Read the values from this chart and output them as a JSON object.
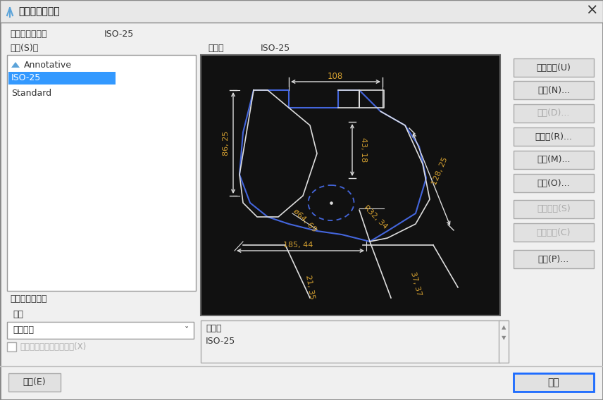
{
  "title": "标注样式管理器",
  "title_icon_color": "#5ba3d9",
  "bg_color": "#f0f0f0",
  "current_label": "当前标注样式：",
  "current_value": "ISO-25",
  "styles_label": "样式(S)：",
  "preview_label": "预览：",
  "preview_value": "ISO-25",
  "style_list": [
    "Annotative",
    "ISO-25",
    "Standard"
  ],
  "selected_bg": "#3399ff",
  "selected_fg": "#ffffff",
  "list_box_bg": "#ffffff",
  "preview_bg": "#111111",
  "buttons_right": [
    {
      "label": "置为当前(U)",
      "enabled": true
    },
    {
      "label": "新建(N)...",
      "enabled": true
    },
    {
      "label": "删除(D)...",
      "enabled": false
    },
    {
      "label": "重命名(R)...",
      "enabled": true
    },
    {
      "label": "修改(M)...",
      "enabled": true
    },
    {
      "label": "替代(O)...",
      "enabled": true
    },
    {
      "label": "保存替代(S)",
      "enabled": false
    },
    {
      "label": "清除替代(C)",
      "enabled": false
    },
    {
      "label": "比较(P)...",
      "enabled": true
    }
  ],
  "display_options_label": "样式显示选项：",
  "list_label": "列出",
  "dropdown_value": "所有样式",
  "checkbox_label": "不列出外部参照中的样式(X)",
  "description_label": "说明：",
  "description_value": "ISO-25",
  "help_button": "帮助(E)",
  "close_button": "关闭",
  "close_btn_border": "#1a6aff",
  "disabled_text_color": "#aaaaaa",
  "normal_text_color": "#333333",
  "btn_bg": "#e1e1e1",
  "btn_border": "#aaaaaa",
  "dim_color": "#d4a030",
  "white": "#ffffff",
  "black": "#000000",
  "blue_line": "#4466dd",
  "white_line": "#dddddd"
}
